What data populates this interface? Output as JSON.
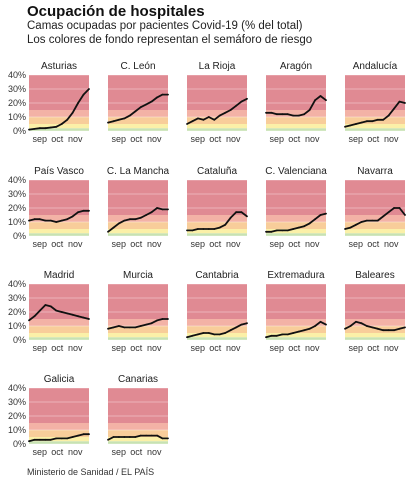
{
  "title": "Ocupación de hospitales",
  "subtitle_line1": "Camas ocupadas por pacientes Covid-19 (% del total)",
  "subtitle_line2": "Los colores de fondo representan el semáforo de riesgo",
  "source": "Ministerio de Sanidad / EL PAÍS",
  "colors": {
    "line": "#111111",
    "band_green": "#c7e2b3",
    "band_yellow": "#fbf0a8",
    "band_orange": "#f8cd9a",
    "band_lightred": "#f3b2a6",
    "band_red": "#e08a93"
  },
  "chart_data": {
    "type": "line",
    "title": "Ocupación de hospitales",
    "ylabel": "",
    "xlabel": "",
    "ylim": [
      0,
      40
    ],
    "yticks": [
      0,
      10,
      20,
      30,
      40
    ],
    "ytick_labels": [
      "0%",
      "10%",
      "20%",
      "30%",
      "40%"
    ],
    "xtick_labels": [
      "sep",
      "oct",
      "nov"
    ],
    "xtick_positions": [
      0.18,
      0.47,
      0.77
    ],
    "risk_bands": [
      {
        "from": 0,
        "to": 2,
        "color": "band_green"
      },
      {
        "from": 2,
        "to": 5,
        "color": "band_yellow"
      },
      {
        "from": 5,
        "to": 10,
        "color": "band_orange"
      },
      {
        "from": 10,
        "to": 15,
        "color": "band_lightred"
      },
      {
        "from": 15,
        "to": 40,
        "color": "band_red"
      }
    ],
    "grid": true,
    "panels": [
      {
        "name": "Asturias",
        "values": [
          1,
          1.5,
          2,
          2,
          2.5,
          3,
          5,
          8,
          13,
          20,
          26,
          30
        ]
      },
      {
        "name": "C. León",
        "values": [
          6,
          7,
          8,
          9,
          11,
          14,
          17,
          19,
          21,
          24,
          26,
          26
        ]
      },
      {
        "name": "La Rioja",
        "values": [
          5,
          7,
          9,
          8,
          10,
          8,
          11,
          13,
          15,
          18,
          21,
          23
        ]
      },
      {
        "name": "Aragón",
        "values": [
          13,
          13,
          12,
          12,
          12,
          11,
          11,
          12,
          15,
          22,
          25,
          22
        ]
      },
      {
        "name": "Andalucía",
        "values": [
          3,
          4,
          5,
          6,
          7,
          7,
          8,
          8,
          11,
          16,
          21,
          20
        ]
      },
      {
        "name": "País Vasco",
        "values": [
          11,
          12,
          12,
          11,
          11,
          10,
          11,
          12,
          14,
          17,
          18,
          18
        ]
      },
      {
        "name": "C. La Mancha",
        "values": [
          3,
          6,
          9,
          11,
          12,
          12,
          13,
          15,
          17,
          20,
          19,
          19
        ]
      },
      {
        "name": "Cataluña",
        "values": [
          4,
          4,
          5,
          5,
          5,
          5,
          6,
          8,
          13,
          17,
          17,
          14
        ]
      },
      {
        "name": "C. Valenciana",
        "values": [
          3,
          3,
          4,
          4,
          4,
          5,
          6,
          7,
          9,
          12,
          15,
          16
        ]
      },
      {
        "name": "Navarra",
        "values": [
          5,
          6,
          8,
          10,
          11,
          11,
          11,
          14,
          17,
          20,
          20,
          15
        ]
      },
      {
        "name": "Madrid",
        "values": [
          14,
          17,
          21,
          25,
          24,
          21,
          20,
          19,
          18,
          17,
          16,
          15
        ]
      },
      {
        "name": "Murcia",
        "values": [
          8,
          9,
          10,
          9,
          9,
          9,
          10,
          11,
          12,
          14,
          15,
          15
        ]
      },
      {
        "name": "Cantabria",
        "values": [
          2,
          3,
          4,
          5,
          5,
          4,
          4,
          5,
          7,
          9,
          11,
          12
        ]
      },
      {
        "name": "Extremadura",
        "values": [
          2,
          3,
          3,
          4,
          4,
          5,
          6,
          7,
          8,
          10,
          13,
          11
        ]
      },
      {
        "name": "Baleares",
        "values": [
          8,
          10,
          13,
          12,
          10,
          9,
          8,
          7,
          7,
          7,
          8,
          9
        ]
      },
      {
        "name": "Galicia",
        "values": [
          2,
          3,
          3,
          3,
          3,
          4,
          4,
          4,
          5,
          6,
          7,
          7
        ]
      },
      {
        "name": "Canarias",
        "values": [
          3,
          5,
          5,
          5,
          5,
          5,
          6,
          6,
          6,
          6,
          4,
          4
        ]
      }
    ]
  }
}
